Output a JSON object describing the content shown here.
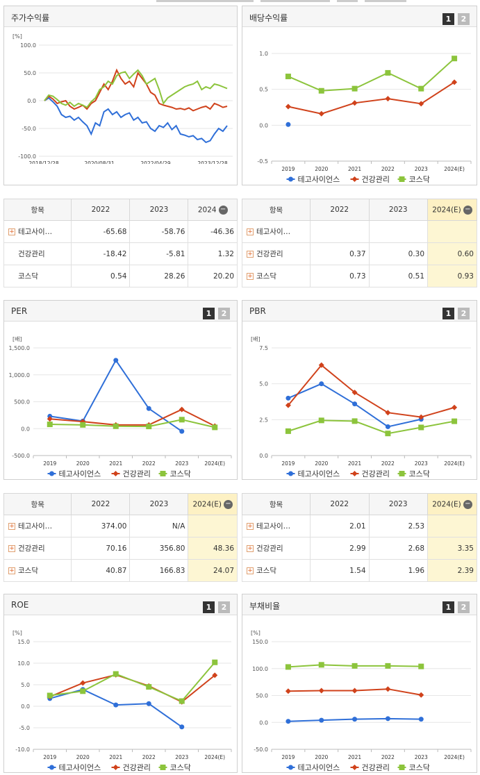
{
  "colors": {
    "teko": "#2f6fd8",
    "gg": "#d0421b",
    "kosdaq": "#8cc43c"
  },
  "legend": [
    "테고사이언스",
    "건강관리",
    "코스닥"
  ],
  "panels": {
    "stock": {
      "title": "주가수익률"
    },
    "div": {
      "title": "배당수익률",
      "btn1": "1",
      "btn2": "2"
    },
    "per": {
      "title": "PER",
      "btn1": "1",
      "btn2": "2"
    },
    "pbr": {
      "title": "PBR",
      "btn1": "1",
      "btn2": "2"
    },
    "roe": {
      "title": "ROE",
      "btn1": "1",
      "btn2": "2"
    },
    "debt": {
      "title": "부채비율",
      "btn1": "1",
      "btn2": "2"
    }
  },
  "tables": {
    "stock": {
      "head": [
        "항목",
        "2022",
        "2023",
        "2024"
      ],
      "rows": [
        {
          "name": "테고사이…",
          "plus": true,
          "v": [
            "-65.68",
            "-58.76",
            "-46.36"
          ]
        },
        {
          "name": "건강관리",
          "plus": false,
          "v": [
            "-18.42",
            "-5.81",
            "1.32"
          ]
        },
        {
          "name": "코스닥",
          "plus": false,
          "v": [
            "0.54",
            "28.26",
            "20.20"
          ]
        }
      ]
    },
    "div": {
      "head": [
        "항목",
        "2022",
        "2023",
        "2024(E)"
      ],
      "rows": [
        {
          "name": "테고사이…",
          "plus": true,
          "v": [
            "",
            "",
            ""
          ]
        },
        {
          "name": "건강관리",
          "plus": true,
          "v": [
            "0.37",
            "0.30",
            "0.60"
          ]
        },
        {
          "name": "코스닥",
          "plus": true,
          "v": [
            "0.73",
            "0.51",
            "0.93"
          ]
        }
      ]
    },
    "per": {
      "head": [
        "항목",
        "2022",
        "2023",
        "2024(E)"
      ],
      "rows": [
        {
          "name": "테고사이…",
          "plus": true,
          "v": [
            "374.00",
            "N/A",
            ""
          ]
        },
        {
          "name": "건강관리",
          "plus": true,
          "v": [
            "70.16",
            "356.80",
            "48.36"
          ]
        },
        {
          "name": "코스닥",
          "plus": true,
          "v": [
            "40.87",
            "166.83",
            "24.07"
          ]
        }
      ]
    },
    "pbr": {
      "head": [
        "항목",
        "2022",
        "2023",
        "2024(E)"
      ],
      "rows": [
        {
          "name": "테고사이…",
          "plus": true,
          "v": [
            "2.01",
            "2.53",
            ""
          ]
        },
        {
          "name": "건강관리",
          "plus": true,
          "v": [
            "2.99",
            "2.68",
            "3.35"
          ]
        },
        {
          "name": "코스닥",
          "plus": true,
          "v": [
            "1.54",
            "1.96",
            "2.39"
          ]
        }
      ]
    }
  },
  "chart_data": [
    {
      "id": "stock",
      "type": "line",
      "unit": "[%]",
      "ylim": [
        -100,
        100
      ],
      "yticks": [
        "100.0",
        "50.0",
        "0.0",
        "-50.0",
        "-100.0"
      ],
      "xlabels": [
        "2018/12/28",
        "2020/08/31",
        "2022/04/29",
        "2023/12/28"
      ],
      "series": [
        {
          "name": "테고사이언스",
          "values": [
            0,
            5,
            -2,
            -10,
            -25,
            -30,
            -28,
            -35,
            -30,
            -38,
            -45,
            -60,
            -40,
            -45,
            -20,
            -15,
            -25,
            -20,
            -30,
            -25,
            -22,
            -35,
            -30,
            -40,
            -38,
            -50,
            -55,
            -45,
            -48,
            -40,
            -52,
            -45,
            -60,
            -62,
            -65,
            -63,
            -70,
            -68,
            -75,
            -72,
            -60,
            -50,
            -55,
            -45
          ]
        },
        {
          "name": "건강관리",
          "values": [
            0,
            8,
            3,
            -5,
            -2,
            0,
            -10,
            -15,
            -12,
            -8,
            -15,
            -5,
            0,
            15,
            30,
            20,
            35,
            55,
            40,
            30,
            35,
            25,
            50,
            40,
            30,
            15,
            10,
            -5,
            -8,
            -10,
            -12,
            -15,
            -14,
            -16,
            -13,
            -18,
            -15,
            -12,
            -10,
            -15,
            -5,
            -8,
            -12,
            -10
          ]
        },
        {
          "name": "코스닥",
          "values": [
            0,
            10,
            8,
            2,
            -5,
            -8,
            -3,
            -10,
            -5,
            -8,
            -12,
            -2,
            5,
            20,
            25,
            35,
            30,
            45,
            50,
            52,
            40,
            48,
            55,
            45,
            30,
            35,
            40,
            20,
            -5,
            5,
            10,
            15,
            20,
            25,
            28,
            30,
            35,
            20,
            25,
            22,
            30,
            28,
            25,
            22
          ]
        }
      ]
    },
    {
      "id": "div",
      "type": "line",
      "ylim": [
        -0.5,
        1.0
      ],
      "yticks": [
        "1.0",
        "0.5",
        "0.0",
        "-0.5"
      ],
      "categories": [
        "2019",
        "2020",
        "2021",
        "2022",
        "2023",
        "2024(E)"
      ],
      "series": [
        {
          "name": "테고사이언스",
          "values": [
            0.01,
            null,
            null,
            null,
            null,
            null
          ]
        },
        {
          "name": "건강관리",
          "values": [
            0.26,
            0.16,
            0.31,
            0.37,
            0.3,
            0.6
          ]
        },
        {
          "name": "코스닥",
          "values": [
            0.68,
            0.48,
            0.51,
            0.73,
            0.51,
            0.93
          ]
        }
      ]
    },
    {
      "id": "per",
      "type": "line",
      "unit": "[배]",
      "ylim": [
        -500,
        1500
      ],
      "yticks": [
        "1,500.0",
        "1,000.0",
        "500.0",
        "0.0",
        "-500.0"
      ],
      "categories": [
        "2019",
        "2020",
        "2021",
        "2022",
        "2023",
        "2024(E)"
      ],
      "series": [
        {
          "name": "테고사이언스",
          "values": [
            230,
            140,
            1270,
            374,
            -50,
            null
          ]
        },
        {
          "name": "건강관리",
          "values": [
            180,
            130,
            70,
            70,
            357,
            48
          ]
        },
        {
          "name": "코스닥",
          "values": [
            80,
            70,
            45,
            41,
            167,
            24
          ]
        }
      ]
    },
    {
      "id": "pbr",
      "type": "line",
      "unit": "[배]",
      "ylim": [
        0,
        7.5
      ],
      "yticks": [
        "7.5",
        "5.0",
        "2.5",
        "0.0"
      ],
      "categories": [
        "2019",
        "2020",
        "2021",
        "2022",
        "2023",
        "2024(E)"
      ],
      "series": [
        {
          "name": "테고사이언스",
          "values": [
            4.0,
            5.0,
            3.6,
            2.01,
            2.53,
            null
          ]
        },
        {
          "name": "건강관리",
          "values": [
            3.5,
            6.3,
            4.4,
            2.99,
            2.68,
            3.35
          ]
        },
        {
          "name": "코스닥",
          "values": [
            1.7,
            2.45,
            2.4,
            1.54,
            1.96,
            2.39
          ]
        }
      ]
    },
    {
      "id": "roe",
      "type": "line",
      "unit": "[%]",
      "ylim": [
        -10,
        15
      ],
      "yticks": [
        "15.0",
        "10.0",
        "5.0",
        "0.0",
        "-5.0",
        "-10.0"
      ],
      "categories": [
        "2019",
        "2020",
        "2021",
        "2022",
        "2023",
        "2024(E)"
      ],
      "series": [
        {
          "name": "테고사이언스",
          "values": [
            1.8,
            3.9,
            0.3,
            0.6,
            -4.8,
            null
          ]
        },
        {
          "name": "건강관리",
          "values": [
            2.2,
            5.4,
            7.3,
            4.7,
            1.0,
            7.2
          ]
        },
        {
          "name": "코스닥",
          "values": [
            2.5,
            3.5,
            7.5,
            4.5,
            1.2,
            10.2
          ]
        }
      ]
    },
    {
      "id": "debt",
      "type": "line",
      "unit": "[%]",
      "ylim": [
        -50,
        150
      ],
      "yticks": [
        "150.0",
        "100.0",
        "50.0",
        "0.0",
        "-50.0"
      ],
      "categories": [
        "2019",
        "2020",
        "2021",
        "2022",
        "2023",
        "2024(E)"
      ],
      "series": [
        {
          "name": "테고사이언스",
          "values": [
            2,
            4,
            6,
            7,
            6,
            null
          ]
        },
        {
          "name": "건강관리",
          "values": [
            58,
            59,
            59,
            62,
            51,
            null
          ]
        },
        {
          "name": "코스닥",
          "values": [
            103,
            107,
            105,
            105,
            104,
            null
          ]
        }
      ]
    }
  ]
}
